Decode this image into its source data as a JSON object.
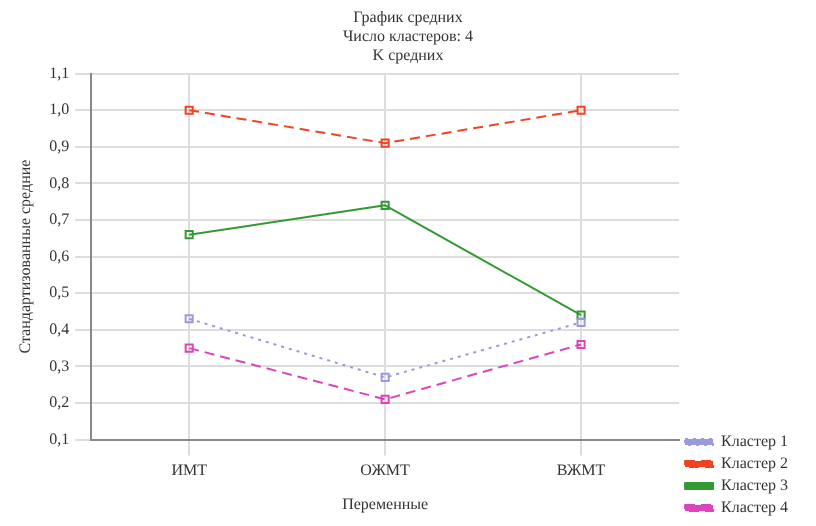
{
  "chart_data": {
    "type": "line",
    "title": "График средних",
    "subtitle": "Число кластеров: 4\nK средних",
    "xlabel": "Переменные",
    "ylabel": "Стандартизованные средние",
    "categories": [
      "ИМТ",
      "ОЖМТ",
      "ВЖМТ"
    ],
    "series": [
      {
        "name": "Кластер 1",
        "color": "#9999dd",
        "line_style": "dotted",
        "values": [
          0.43,
          0.27,
          0.42
        ]
      },
      {
        "name": "Кластер 2",
        "color": "#ee4422",
        "line_style": "dashed",
        "values": [
          1.0,
          0.91,
          1.0
        ]
      },
      {
        "name": "Кластер 3",
        "color": "#339933",
        "line_style": "solid",
        "values": [
          0.66,
          0.74,
          0.44
        ]
      },
      {
        "name": "Кластер 4",
        "color": "#dd44bb",
        "line_style": "dashed",
        "values": [
          0.35,
          0.21,
          0.36
        ]
      }
    ],
    "ylim": [
      0.1,
      1.1
    ],
    "yticks": [
      {
        "value": 0.1,
        "label": "0,1"
      },
      {
        "value": 0.2,
        "label": "0,2"
      },
      {
        "value": 0.3,
        "label": "0,3"
      },
      {
        "value": 0.4,
        "label": "0,4"
      },
      {
        "value": 0.5,
        "label": "0,5"
      },
      {
        "value": 0.6,
        "label": "0,6"
      },
      {
        "value": 0.7,
        "label": "0,7"
      },
      {
        "value": 0.8,
        "label": "0,8"
      },
      {
        "value": 0.9,
        "label": "0,9"
      },
      {
        "value": 1.0,
        "label": "1,0"
      },
      {
        "value": 1.1,
        "label": "1,1"
      }
    ],
    "grid": true,
    "legend": "bottom right",
    "marker": "square"
  }
}
